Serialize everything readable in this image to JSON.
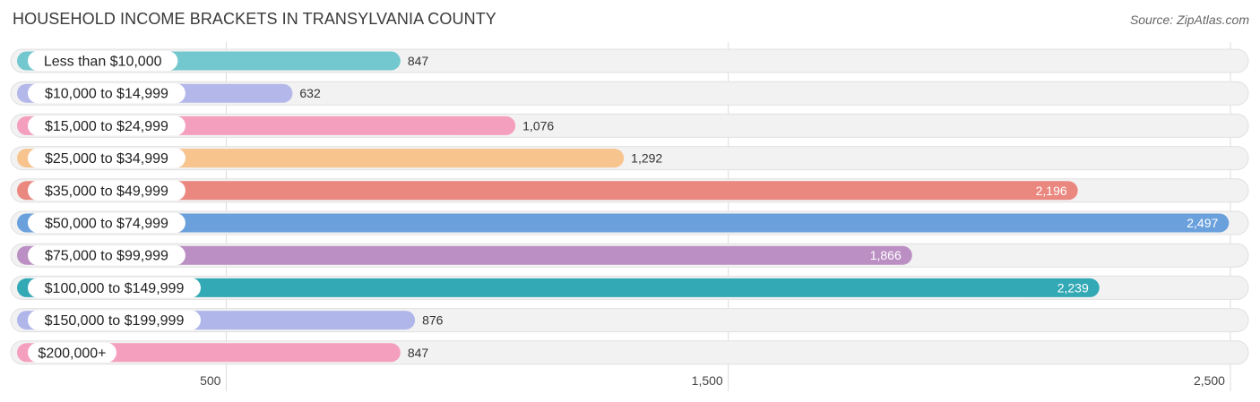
{
  "chart_data": {
    "type": "bar",
    "orientation": "horizontal",
    "title": "HOUSEHOLD INCOME BRACKETS IN TRANSYLVANIA COUNTY",
    "source": "Source: ZipAtlas.com",
    "xlabel": "",
    "ylabel": "",
    "categories": [
      "Less than $10,000",
      "$10,000 to $14,999",
      "$15,000 to $24,999",
      "$25,000 to $34,999",
      "$35,000 to $49,999",
      "$50,000 to $74,999",
      "$75,000 to $99,999",
      "$100,000 to $149,999",
      "$150,000 to $199,999",
      "$200,000+"
    ],
    "values": [
      847,
      632,
      1076,
      1292,
      2196,
      2497,
      1866,
      2239,
      876,
      847
    ],
    "value_labels": [
      "847",
      "632",
      "1,076",
      "1,292",
      "2,196",
      "2,497",
      "1,866",
      "2,239",
      "876",
      "847"
    ],
    "colors": [
      "#72c8ce",
      "#b3b7ea",
      "#f59fbe",
      "#f8c48e",
      "#ea8880",
      "#6aa0dc",
      "#bb8fc3",
      "#33a9b6",
      "#b0b6ea",
      "#f59fbe"
    ],
    "xticks": [
      500,
      1500,
      2500
    ],
    "xtick_labels": [
      "500",
      "1,500",
      "2,500"
    ],
    "xlim": [
      83.36,
      2525
    ],
    "grid": true,
    "legend": "none"
  }
}
